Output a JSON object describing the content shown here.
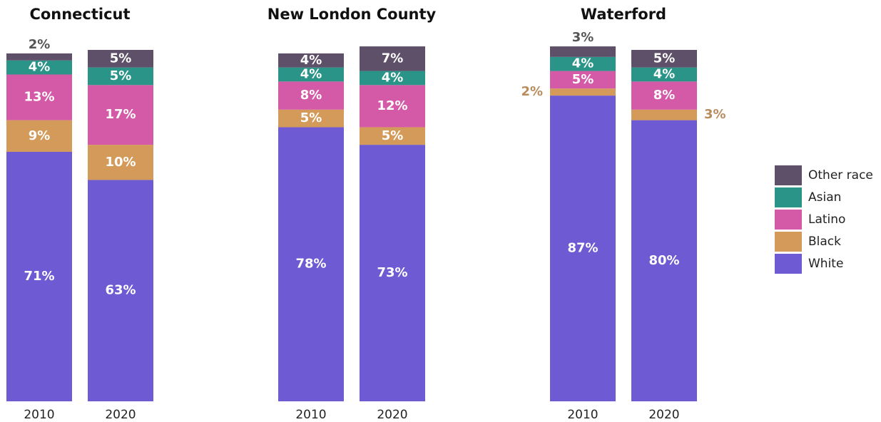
{
  "chart_data": [
    {
      "type": "bar",
      "stacked": true,
      "title": "Connecticut",
      "categories": [
        "2010",
        "2020"
      ],
      "ylim": [
        0,
        100
      ],
      "series": [
        {
          "name": "White",
          "color": "#6e5ad2",
          "values": [
            71,
            63
          ],
          "value_labels": [
            "71%",
            "63%"
          ]
        },
        {
          "name": "Black",
          "color": "#d49a5a",
          "values": [
            9,
            10
          ],
          "value_labels": [
            "9%",
            "10%"
          ]
        },
        {
          "name": "Latino",
          "color": "#d45aa8",
          "values": [
            13,
            17
          ],
          "value_labels": [
            "13%",
            "17%"
          ]
        },
        {
          "name": "Asian",
          "color": "#2a9488",
          "values": [
            4,
            5
          ],
          "value_labels": [
            "4%",
            "5%"
          ]
        },
        {
          "name": "Other race",
          "color": "#5e5068",
          "values": [
            2,
            5
          ],
          "value_labels": [
            "2%",
            "5%"
          ]
        }
      ]
    },
    {
      "type": "bar",
      "stacked": true,
      "title": "New London County",
      "categories": [
        "2010",
        "2020"
      ],
      "ylim": [
        0,
        100
      ],
      "series": [
        {
          "name": "White",
          "color": "#6e5ad2",
          "values": [
            78,
            73
          ],
          "value_labels": [
            "78%",
            "73%"
          ]
        },
        {
          "name": "Black",
          "color": "#d49a5a",
          "values": [
            5,
            5
          ],
          "value_labels": [
            "5%",
            "5%"
          ]
        },
        {
          "name": "Latino",
          "color": "#d45aa8",
          "values": [
            8,
            12
          ],
          "value_labels": [
            "8%",
            "12%"
          ]
        },
        {
          "name": "Asian",
          "color": "#2a9488",
          "values": [
            4,
            4
          ],
          "value_labels": [
            "4%",
            "4%"
          ]
        },
        {
          "name": "Other race",
          "color": "#5e5068",
          "values": [
            4,
            7
          ],
          "value_labels": [
            "4%",
            "7%"
          ]
        }
      ]
    },
    {
      "type": "bar",
      "stacked": true,
      "title": "Waterford",
      "categories": [
        "2010",
        "2020"
      ],
      "ylim": [
        0,
        100
      ],
      "series": [
        {
          "name": "White",
          "color": "#6e5ad2",
          "values": [
            87,
            80
          ],
          "value_labels": [
            "87%",
            "80%"
          ]
        },
        {
          "name": "Black",
          "color": "#d49a5a",
          "values": [
            2,
            3
          ],
          "value_labels": [
            "2%",
            "3%"
          ]
        },
        {
          "name": "Latino",
          "color": "#d45aa8",
          "values": [
            5,
            8
          ],
          "value_labels": [
            "5%",
            "8%"
          ]
        },
        {
          "name": "Asian",
          "color": "#2a9488",
          "values": [
            4,
            4
          ],
          "value_labels": [
            "4%",
            "4%"
          ]
        },
        {
          "name": "Other race",
          "color": "#5e5068",
          "values": [
            3,
            5
          ],
          "value_labels": [
            "3%",
            "5%"
          ]
        }
      ]
    }
  ]
}
